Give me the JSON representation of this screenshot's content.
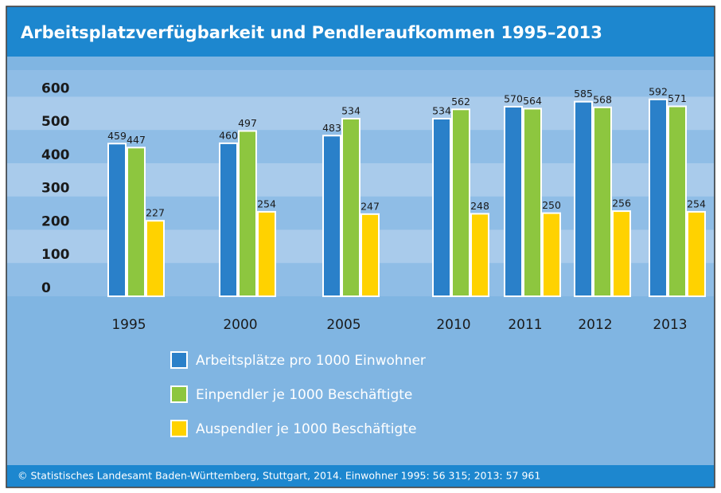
{
  "chart_data": {
    "type": "bar",
    "title": "Arbeitsplatzverfügbarkeit und Pendleraufkommen 1995–2013",
    "source": "© Statistisches Landesamt Baden-Württemberg, Stuttgart, 2014. Einwohner 1995: 56 315; 2013: 57 961",
    "categories": [
      "1995",
      "2000",
      "2005",
      "2010",
      "2011",
      "2012",
      "2013"
    ],
    "series": [
      {
        "name": "Arbeitsplätze pro 1000 Einwohner",
        "color": "#2a80c9",
        "values": [
          459,
          460,
          483,
          534,
          570,
          585,
          592
        ]
      },
      {
        "name": "Einpendler je 1000 Beschäftigte",
        "color": "#8dc63f",
        "values": [
          447,
          497,
          534,
          562,
          564,
          568,
          571
        ]
      },
      {
        "name": "Auspendler je 1000 Beschäftigte",
        "color": "#ffd200",
        "values": [
          227,
          254,
          247,
          248,
          250,
          256,
          254
        ]
      }
    ],
    "ylim": [
      0,
      680
    ],
    "yticks": [
      0,
      100,
      200,
      300,
      400,
      500,
      600
    ],
    "grid": true
  }
}
